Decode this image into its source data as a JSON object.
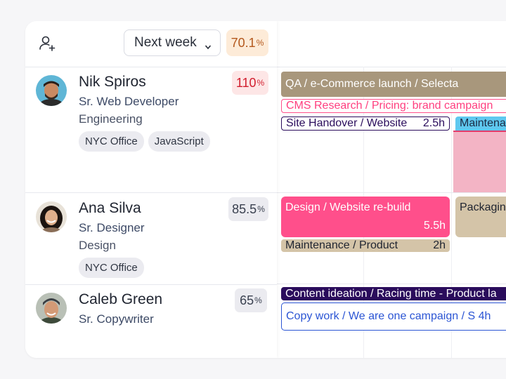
{
  "header": {
    "period_label": "Next week",
    "overall_util_value": "70.1",
    "overall_util_unit": "%"
  },
  "people": [
    {
      "name": "Nik Spiros",
      "role": "Sr. Web Developer",
      "department": "Engineering",
      "tags": [
        "NYC Office",
        "JavaScript"
      ],
      "util_value": "110",
      "util_unit": "%",
      "tasks": [
        {
          "label": "QA / e-Commerce launch / Selecta"
        },
        {
          "label": "CMS Research / Pricing: brand campaign"
        },
        {
          "label": "Site Handover / Website",
          "hours": "2.5h"
        },
        {
          "label": "Maintena"
        }
      ]
    },
    {
      "name": "Ana Silva",
      "role": "Sr. Designer",
      "department": "Design",
      "tags": [
        "NYC Office"
      ],
      "util_value": "85.5",
      "util_unit": "%",
      "tasks": [
        {
          "label": "Design / Website re-build",
          "hours": "5.5h"
        },
        {
          "label": "Packagin"
        },
        {
          "label": "Maintenance / Product",
          "hours": "2h"
        }
      ]
    },
    {
      "name": "Caleb Green",
      "role": "Sr. Copywriter",
      "util_value": "65",
      "util_unit": "%",
      "tasks": [
        {
          "label": "Content ideation / Racing time - Product la"
        },
        {
          "label": "Copy work / We are one campaign / S 4h"
        }
      ]
    }
  ],
  "colors": {
    "brown": "#a8977c",
    "pink": "#ff4f8b",
    "navy": "#2a0c5c",
    "blue": "#2b55d4",
    "cyan": "#5fc8ef",
    "light_pink": "#f3b4c5",
    "tan": "#d4c4a8"
  }
}
